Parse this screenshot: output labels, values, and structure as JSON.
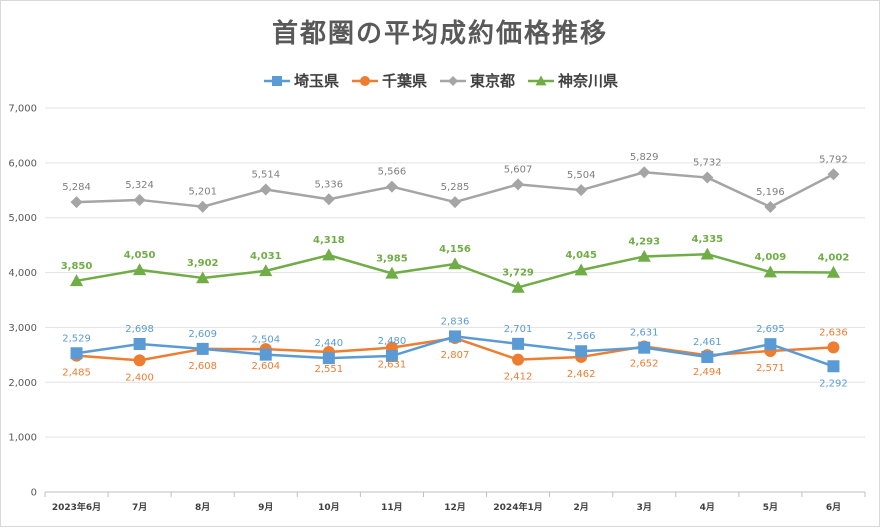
{
  "chart_data": {
    "type": "line",
    "title": "首都圏の平均成約価格推移",
    "categories": [
      "2023年6月",
      "7月",
      "8月",
      "9月",
      "10月",
      "11月",
      "12月",
      "2024年1月",
      "2月",
      "3月",
      "4月",
      "5月",
      "6月"
    ],
    "ylim": [
      0,
      7000
    ],
    "yticks": [
      "0",
      "1,000",
      "2,000",
      "3,000",
      "4,000",
      "5,000",
      "6,000",
      "7,000"
    ],
    "ytick_values": [
      0,
      1000,
      2000,
      3000,
      4000,
      5000,
      6000,
      7000
    ],
    "grid": true,
    "legend_position": "top",
    "series": [
      {
        "name": "埼玉県",
        "color": "#5b9bd5",
        "marker": "square",
        "label_pos": "above-below",
        "values": [
          2529,
          2698,
          2609,
          2504,
          2440,
          2480,
          2836,
          2701,
          2566,
          2631,
          2461,
          2695,
          2292
        ],
        "labels": [
          "2,529",
          "2,698",
          "2,609",
          "2,504",
          "2,440",
          "2,480",
          "2,836",
          "2,701",
          "2,566",
          "2,631",
          "2,461",
          "2,695",
          "2,292"
        ]
      },
      {
        "name": "千葉県",
        "color": "#ed7d31",
        "marker": "circle",
        "values": [
          2485,
          2400,
          2608,
          2604,
          2551,
          2631,
          2807,
          2412,
          2462,
          2652,
          2494,
          2571,
          2636
        ],
        "labels": [
          "2,485",
          "2,400",
          "2,608",
          "2,604",
          "2,551",
          "2,631",
          "2,807",
          "2,412",
          "2,462",
          "2,652",
          "2,494",
          "2,571",
          "2,636"
        ]
      },
      {
        "name": "東京都",
        "color": "#a5a5a5",
        "marker": "diamond",
        "values": [
          5284,
          5324,
          5201,
          5514,
          5336,
          5566,
          5285,
          5607,
          5504,
          5829,
          5732,
          5196,
          5792
        ],
        "labels": [
          "5,284",
          "5,324",
          "5,201",
          "5,514",
          "5,336",
          "5,566",
          "5,285",
          "5,607",
          "5,504",
          "5,829",
          "5,732",
          "5,196",
          "5,792"
        ]
      },
      {
        "name": "神奈川県",
        "color": "#70ad47",
        "marker": "triangle",
        "values": [
          3850,
          4050,
          3902,
          4031,
          4318,
          3985,
          4156,
          3729,
          4045,
          4293,
          4335,
          4009,
          4002
        ],
        "labels": [
          "3,850",
          "4,050",
          "3,902",
          "4,031",
          "4,318",
          "3,985",
          "4,156",
          "3,729",
          "4,045",
          "4,293",
          "4,335",
          "4,009",
          "4,002"
        ]
      }
    ]
  }
}
